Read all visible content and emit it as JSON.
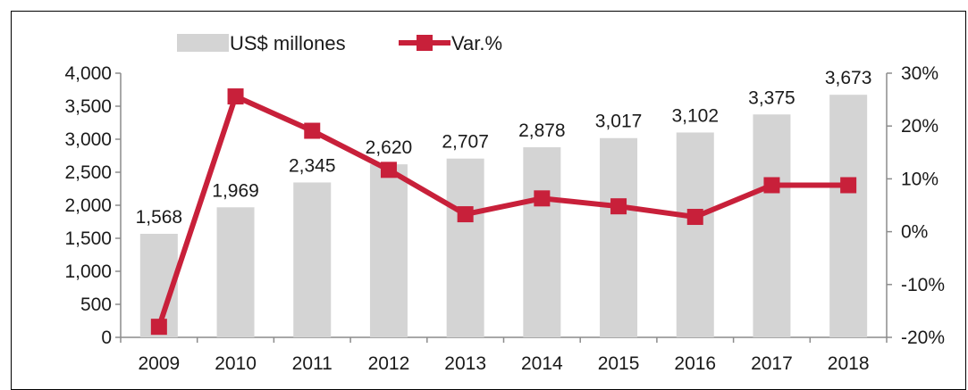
{
  "chart_data": {
    "type": "bar",
    "categories": [
      "2009",
      "2010",
      "2011",
      "2012",
      "2013",
      "2014",
      "2015",
      "2016",
      "2017",
      "2018"
    ],
    "series": [
      {
        "name": "US$ millones",
        "type": "bar",
        "axis": "left",
        "values": [
          1568,
          1969,
          2345,
          2620,
          2707,
          2878,
          3017,
          3102,
          3375,
          3673
        ],
        "labels": [
          "1,568",
          "1,969",
          "2,345",
          "2,620",
          "2,707",
          "2,878",
          "3,017",
          "3,102",
          "3,375",
          "3,673"
        ]
      },
      {
        "name": "Var.%",
        "type": "line",
        "axis": "right",
        "values": [
          -18,
          25.6,
          19.1,
          11.7,
          3.3,
          6.3,
          4.8,
          2.8,
          8.8,
          8.8
        ]
      }
    ],
    "left_axis": {
      "ylim": [
        0,
        4000
      ],
      "ticks": [
        0,
        500,
        1000,
        1500,
        2000,
        2500,
        3000,
        3500,
        4000
      ],
      "tick_labels": [
        "0",
        "500",
        "1,000",
        "1,500",
        "2,000",
        "2,500",
        "3,000",
        "3,500",
        "4,000"
      ]
    },
    "right_axis": {
      "ylim": [
        -20,
        30
      ],
      "ticks": [
        -20,
        -10,
        0,
        10,
        20,
        30
      ],
      "tick_labels": [
        "-20%",
        "-10%",
        "0%",
        "10%",
        "20%",
        "30%"
      ]
    },
    "legend_placement": "top-left",
    "grid": false,
    "colors": {
      "bar": "#d4d4d4",
      "line": "#c8203a",
      "axis": "#8c8c8c",
      "text": "#1a1a1a"
    }
  }
}
